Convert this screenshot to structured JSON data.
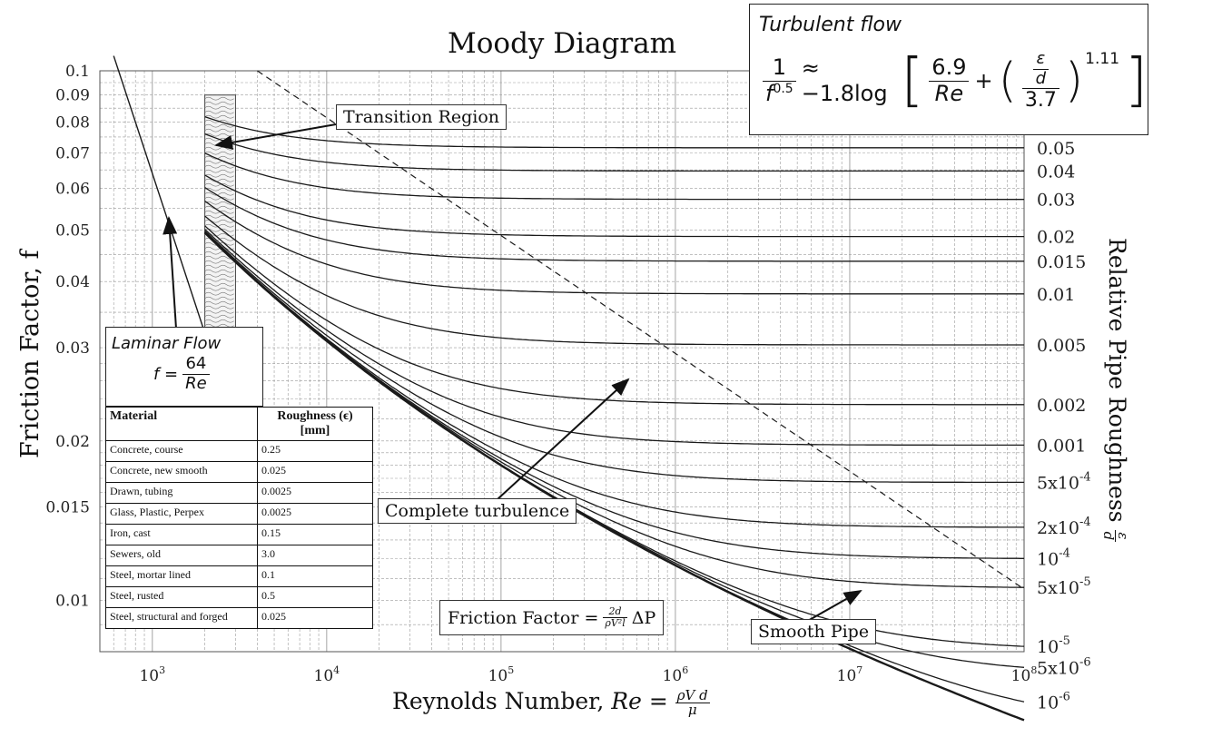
{
  "colors": {
    "line": "#1a1a1a",
    "grid": "#9a9a9a",
    "background": "#ffffff"
  },
  "chart_data": {
    "type": "line",
    "title": "Moody Diagram",
    "xlabel": "Reynolds Number,",
    "xlabel_symbol": "Re =",
    "xlabel_frac_num": "ρV d",
    "xlabel_frac_den": "μ",
    "ylabel": "Friction Factor, f",
    "right_label": "Relative Pipe Roughness",
    "right_label_frac_num": "ε",
    "right_label_frac_den": "d",
    "x_scale": "log",
    "y_scale": "log",
    "xlim": [
      500,
      100000000
    ],
    "ylim": [
      0.008,
      0.1
    ],
    "grid": true,
    "x_ticks": [
      {
        "value": 1000,
        "base": "10",
        "exp": "3"
      },
      {
        "value": 10000,
        "base": "10",
        "exp": "4"
      },
      {
        "value": 100000,
        "base": "10",
        "exp": "5"
      },
      {
        "value": 1000000,
        "base": "10",
        "exp": "6"
      },
      {
        "value": 10000000,
        "base": "10",
        "exp": "7"
      },
      {
        "value": 100000000,
        "base": "10",
        "exp": "8"
      }
    ],
    "y_ticks": [
      {
        "value": 0.1,
        "label": "0.1"
      },
      {
        "value": 0.09,
        "label": "0.09"
      },
      {
        "value": 0.08,
        "label": "0.08"
      },
      {
        "value": 0.07,
        "label": "0.07"
      },
      {
        "value": 0.06,
        "label": "0.06"
      },
      {
        "value": 0.05,
        "label": "0.05"
      },
      {
        "value": 0.04,
        "label": "0.04"
      },
      {
        "value": 0.03,
        "label": "0.03"
      },
      {
        "value": 0.02,
        "label": "0.02"
      },
      {
        "value": 0.015,
        "label": "0.015"
      },
      {
        "value": 0.01,
        "label": "0.01"
      }
    ],
    "series": [
      {
        "label": "0.05",
        "value": 0.05,
        "f_inf": 0.0716
      },
      {
        "label": "0.04",
        "value": 0.04,
        "f_inf": 0.0649
      },
      {
        "label": "0.03",
        "value": 0.03,
        "f_inf": 0.0572
      },
      {
        "label": "0.02",
        "value": 0.02,
        "f_inf": 0.0488
      },
      {
        "label": "0.015",
        "value": 0.015,
        "f_inf": 0.0438
      },
      {
        "label": "0.01",
        "value": 0.01,
        "f_inf": 0.0379
      },
      {
        "label": "0.005",
        "value": 0.005,
        "f_inf": 0.0304
      },
      {
        "label": "0.002",
        "value": 0.002,
        "f_inf": 0.0234
      },
      {
        "label": "0.001",
        "value": 0.001,
        "f_inf": 0.0196
      },
      {
        "label": "5x10",
        "exp": "-4",
        "value": 0.0005,
        "f_inf": 0.0167
      },
      {
        "label": "2x10",
        "exp": "-4",
        "value": 0.0002,
        "f_inf": 0.0137
      },
      {
        "label": "10",
        "exp": "-4",
        "value": 0.0001,
        "f_inf": 0.012
      },
      {
        "label": "5x10",
        "exp": "-5",
        "value": 5e-05,
        "f_inf": 0.0106
      },
      {
        "label": "10",
        "exp": "-5",
        "value": 1e-05,
        "f_inf": 0.008
      },
      {
        "label": "5x10",
        "exp": "-6",
        "value": 5e-06,
        "f_inf": 0.0071
      },
      {
        "label": "10",
        "exp": "-6",
        "value": 1e-06,
        "f_inf": 0.0056
      }
    ],
    "laminar": {
      "formula": "f = 64/Re",
      "x": [
        600,
        2300
      ],
      "y": [
        0.1067,
        0.0278
      ]
    },
    "complete_turbulence_boundary": {
      "x": [
        4000,
        100000000
      ],
      "y": [
        0.1,
        0.0105
      ]
    },
    "transition_region": {
      "x": [
        2000,
        3000
      ],
      "y": [
        0.03,
        0.09
      ]
    },
    "annotations": [
      {
        "text": "Transition Region"
      },
      {
        "text": "Complete turbulence"
      },
      {
        "text": "Smooth Pipe"
      }
    ]
  },
  "formula_box": {
    "label": "Friction Factor =",
    "num": "2d",
    "den": "ρV²l",
    "tail": "ΔP"
  },
  "turbulent_flow": {
    "title": "Turbulent flow",
    "lhs_num": "1",
    "lhs_den": "f",
    "lhs_den_exp": "0.5",
    "approx": "≈ −1.8log",
    "t1_num": "6.9",
    "t1_den": "Re",
    "plus": "+",
    "eps": "ε",
    "d": "d",
    "div": "3.7",
    "exp": "1.11"
  },
  "laminar_flow": {
    "title": "Laminar Flow",
    "lhs": "f =",
    "num": "64",
    "den": "Re"
  },
  "materials_table": {
    "headers": [
      "Material",
      "Roughness (ϵ) [mm]"
    ],
    "rows": [
      [
        "Concrete, course",
        "0.25"
      ],
      [
        "Concrete, new smooth",
        "0.025"
      ],
      [
        "Drawn, tubing",
        "0.0025"
      ],
      [
        "Glass, Plastic, Perpex",
        "0.0025"
      ],
      [
        "Iron, cast",
        "0.15"
      ],
      [
        "Sewers, old",
        "3.0"
      ],
      [
        "Steel, mortar lined",
        "0.1"
      ],
      [
        "Steel, rusted",
        "0.5"
      ],
      [
        "Steel, structural and forged",
        "0.025"
      ]
    ]
  }
}
